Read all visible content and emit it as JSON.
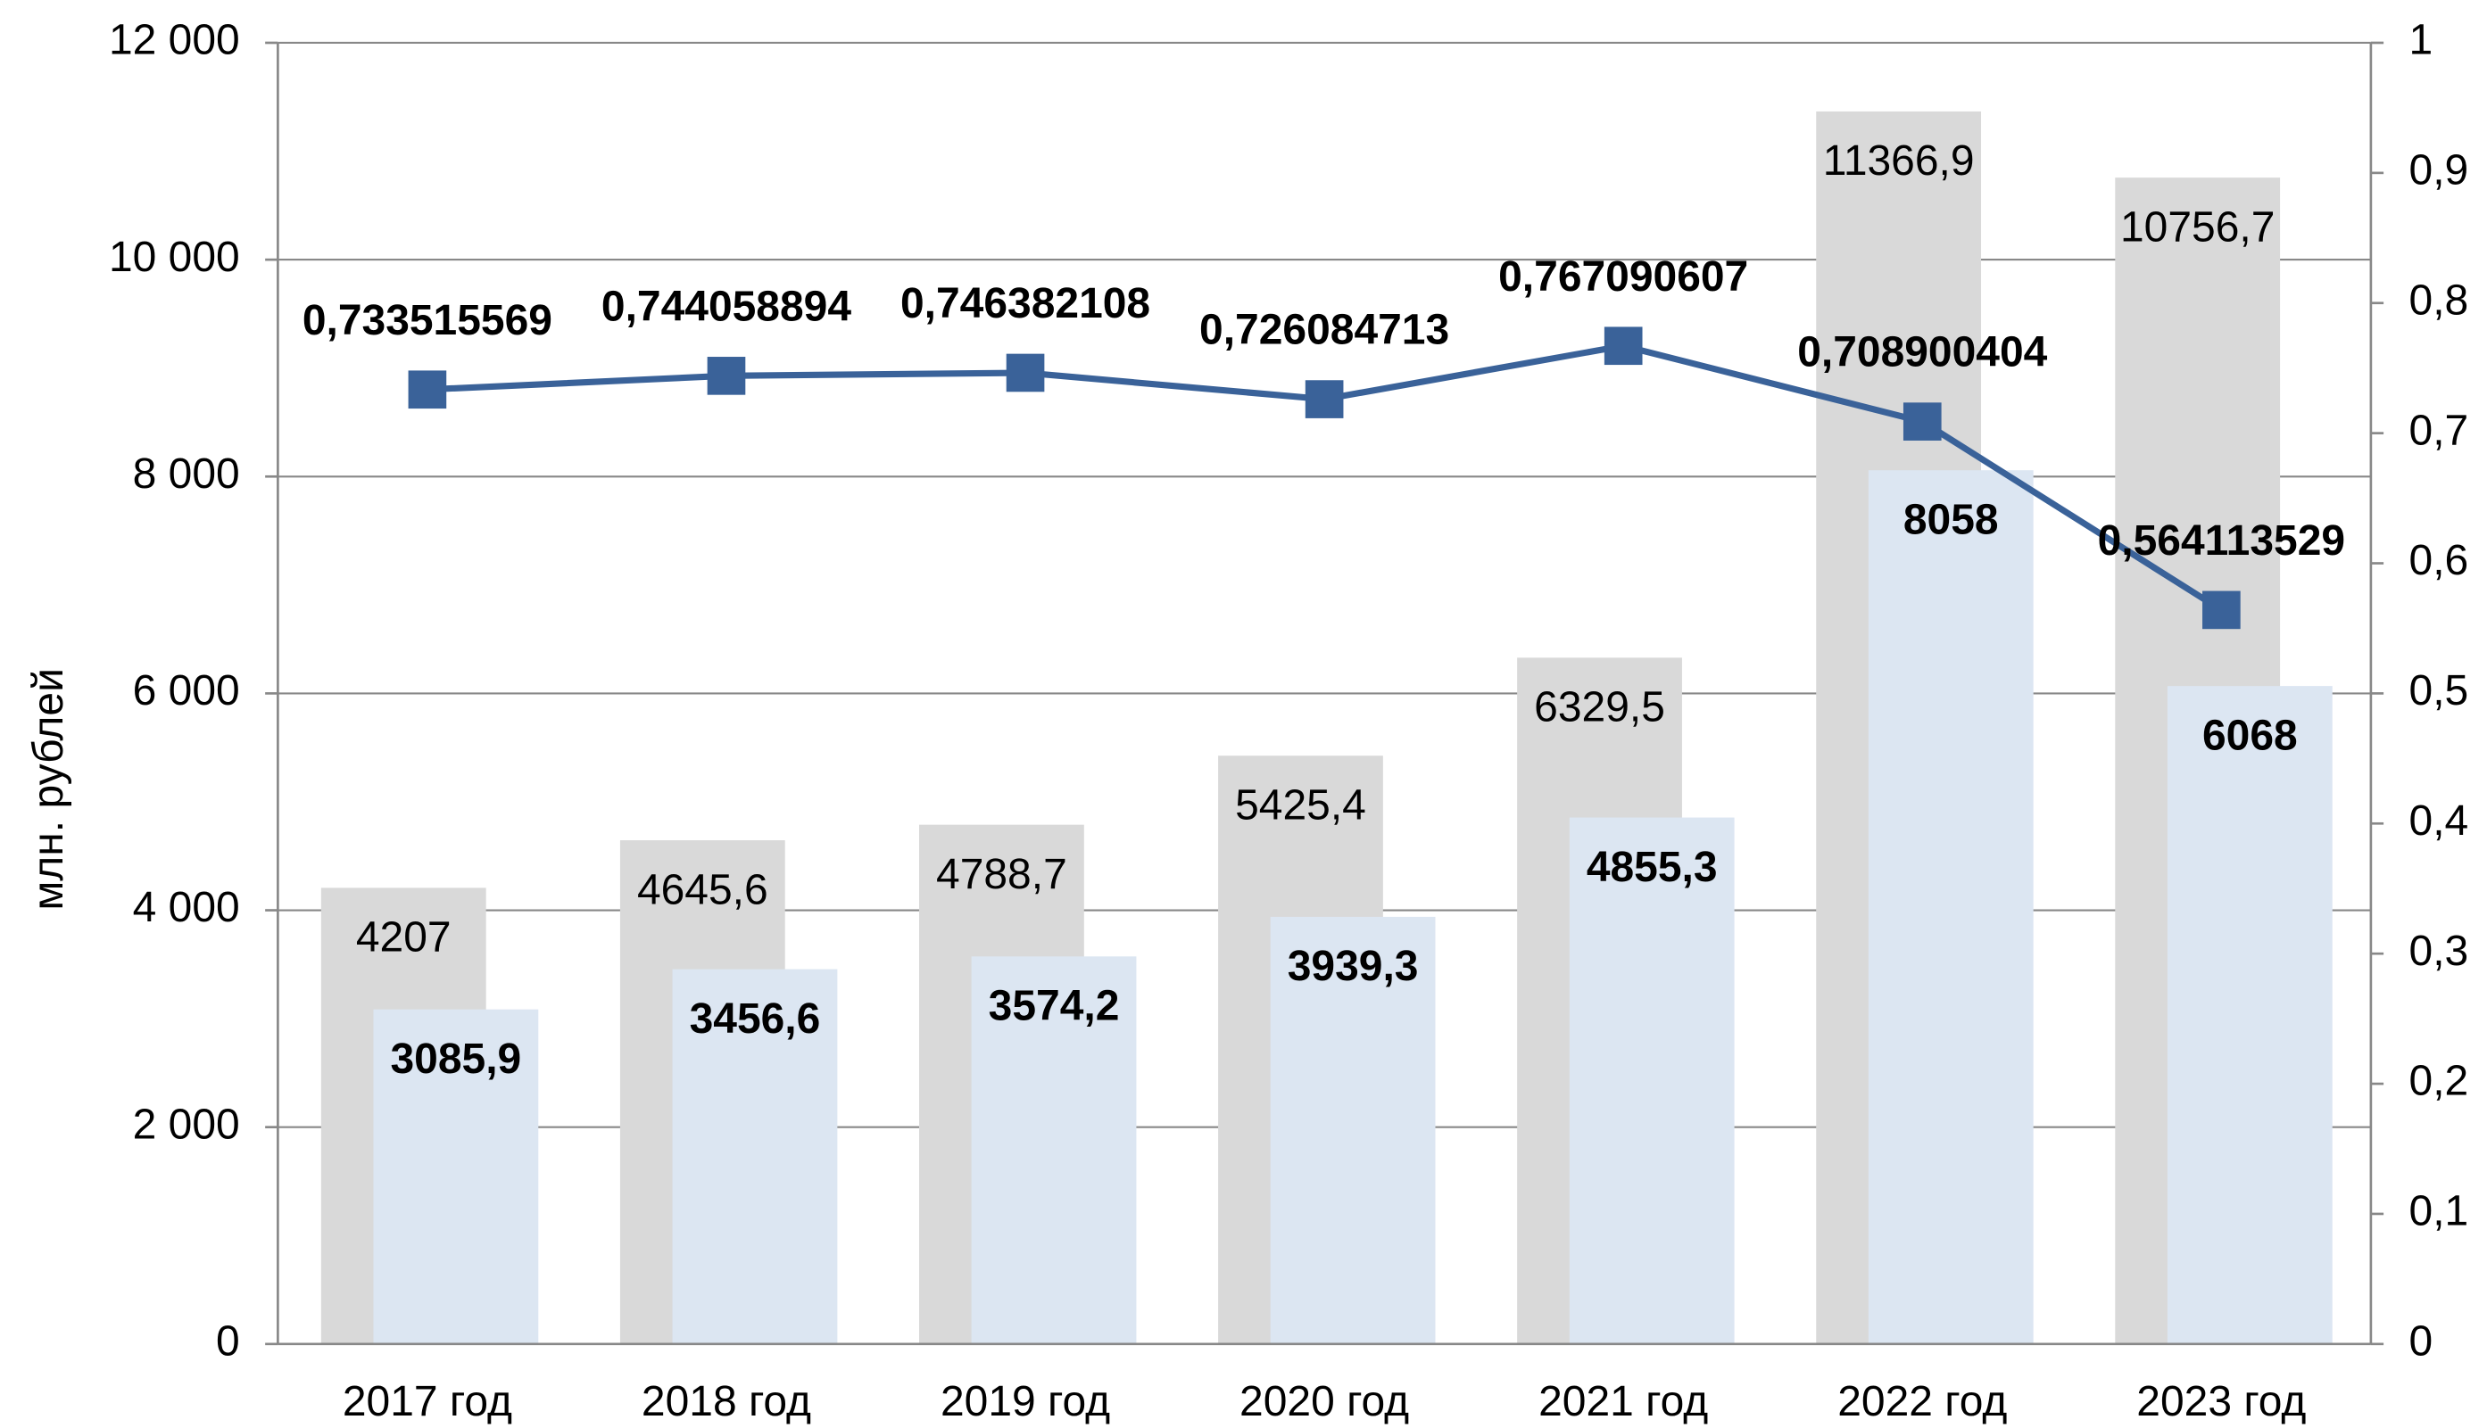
{
  "chart_data": {
    "type": "bar",
    "y_label": "млн. рублей",
    "categories": [
      "2017 год",
      "2018 год",
      "2019 год",
      "2020 год",
      "2021 год",
      "2022 год",
      "2023 год"
    ],
    "series": [
      {
        "type": "bar",
        "color": "#d9d9d9",
        "values": [
          4207,
          4645.6,
          4788.7,
          5425.4,
          6329.5,
          11366.9,
          10756.7
        ],
        "value_labels": [
          "4207",
          "4645,6",
          "4788,7",
          "5425,4",
          "6329,5",
          "11366,9",
          "10756,7"
        ]
      },
      {
        "type": "bar",
        "color": "#dce6f2",
        "values": [
          3085.9,
          3456.6,
          3574.2,
          3939.3,
          4855.3,
          8058,
          6068
        ],
        "value_labels": [
          "3085,9",
          "3456,6",
          "3574,2",
          "3939,3",
          "4855,3",
          "8058",
          "6068"
        ]
      },
      {
        "type": "line",
        "axis": "y2",
        "color": "#3a6299",
        "values": [
          0.733515569,
          0.744058894,
          0.746382108,
          0.726084713,
          0.767090607,
          0.708900404,
          0.564113529
        ],
        "value_labels": [
          "0,733515569",
          "0,744058894",
          "0,746382108",
          "0,726084713",
          "0,767090607",
          "0,708900404",
          "0,564113529"
        ]
      }
    ],
    "ylim": [
      0,
      12000
    ],
    "yticks": [
      0,
      {
        "value": 2000,
        "label": "2 000"
      },
      {
        "value": 4000,
        "label": "4 000"
      },
      {
        "value": 6000,
        "label": "6 000"
      },
      {
        "value": 8000,
        "label": "8 000"
      },
      {
        "value": 10000,
        "label": "10 000"
      },
      {
        "value": 12000,
        "label": "12 000"
      }
    ],
    "y2lim": [
      0,
      1
    ],
    "y2ticks": [
      0,
      {
        "value": 0.1,
        "label": "0,1"
      },
      {
        "value": 0.2,
        "label": "0,2"
      },
      {
        "value": 0.3,
        "label": "0,3"
      },
      {
        "value": 0.4,
        "label": "0,4"
      },
      {
        "value": 0.5,
        "label": "0,5"
      },
      {
        "value": 0.6,
        "label": "0,6"
      },
      {
        "value": 0.7,
        "label": "0,7"
      },
      {
        "value": 0.8,
        "label": "0,8"
      },
      {
        "value": 0.9,
        "label": "0,9"
      },
      1
    ],
    "grid": true
  }
}
